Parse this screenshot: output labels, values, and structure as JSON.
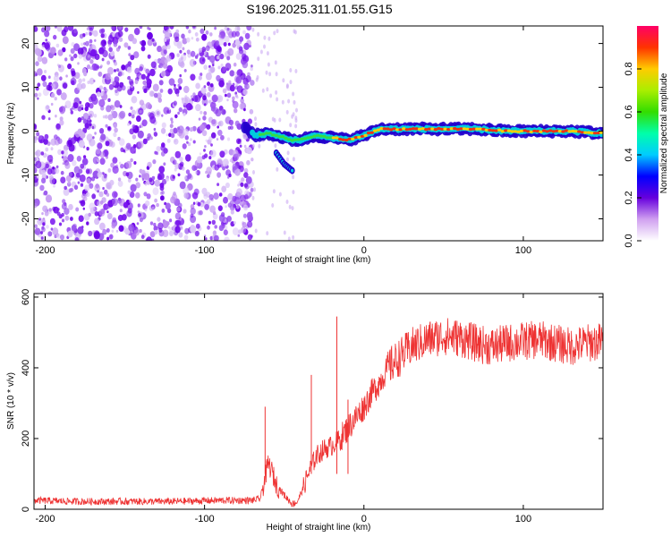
{
  "title": "S196.2025.311.01.55.G15",
  "chart_data": [
    {
      "type": "heatmap",
      "xlabel": "Height of straight line (km)",
      "ylabel": "Frequency (Hz)",
      "xlim": [
        -207,
        150
      ],
      "ylim": [
        -25,
        24
      ],
      "xticks": [
        -200,
        -100,
        0,
        100
      ],
      "yticks": [
        -20,
        -10,
        0,
        10,
        20
      ],
      "colorbar": {
        "label": "Normalized spectral amplitude",
        "range": [
          0,
          1
        ],
        "ticks": [
          0.0,
          0.2,
          0.4,
          0.6,
          0.8
        ],
        "tick_labels": [
          "0.0",
          "0.2",
          "0.4",
          "0.6",
          "0.8"
        ]
      },
      "ridge": {
        "x": [
          -75,
          -68,
          -60,
          -55,
          -50,
          -45,
          -40,
          -35,
          -30,
          -20,
          -10,
          0,
          10,
          30,
          50,
          70,
          90,
          110,
          130,
          150
        ],
        "y": [
          1.0,
          -1.0,
          -0.5,
          -1.0,
          -1.5,
          -2.0,
          -2.0,
          -1.5,
          -1.0,
          -1.5,
          -2.0,
          -1.0,
          0.5,
          0.5,
          0.5,
          0.5,
          0.0,
          0.0,
          0.0,
          -0.5
        ]
      },
      "branch": {
        "x": [
          -55,
          -50,
          -45
        ],
        "y": [
          -5,
          -7.5,
          -9
        ]
      },
      "noise_region": [
        -207,
        -70
      ]
    },
    {
      "type": "line",
      "xlabel": "Height of straight line (km)",
      "ylabel": "SNR (10 * v/v)",
      "xlim": [
        -207,
        150
      ],
      "ylim": [
        0,
        610
      ],
      "xticks": [
        -200,
        -100,
        0,
        100
      ],
      "yticks": [
        0,
        200,
        400,
        600
      ],
      "series": [
        {
          "name": "SNR",
          "color": "#ee3333",
          "x": [
            -207,
            -180,
            -150,
            -120,
            -90,
            -70,
            -65,
            -62,
            -60,
            -58,
            -55,
            -50,
            -45,
            -42,
            -38,
            -35,
            -30,
            -25,
            -20,
            -15,
            -10,
            -5,
            0,
            5,
            10,
            15,
            20,
            25,
            30,
            40,
            50,
            60,
            70,
            80,
            90,
            100,
            110,
            120,
            130,
            140,
            150
          ],
          "y": [
            25,
            22,
            22,
            22,
            25,
            25,
            30,
            90,
            130,
            110,
            70,
            40,
            15,
            20,
            60,
            100,
            150,
            170,
            180,
            200,
            230,
            260,
            290,
            330,
            360,
            400,
            420,
            440,
            460,
            480,
            490,
            485,
            470,
            460,
            470,
            475,
            480,
            470,
            460,
            470,
            475
          ]
        }
      ],
      "spikes": [
        {
          "x": -62,
          "y": 290
        },
        {
          "x": -33,
          "y": 380
        },
        {
          "x": -17,
          "y": 545
        },
        {
          "x": -10,
          "y": 310
        }
      ]
    }
  ]
}
